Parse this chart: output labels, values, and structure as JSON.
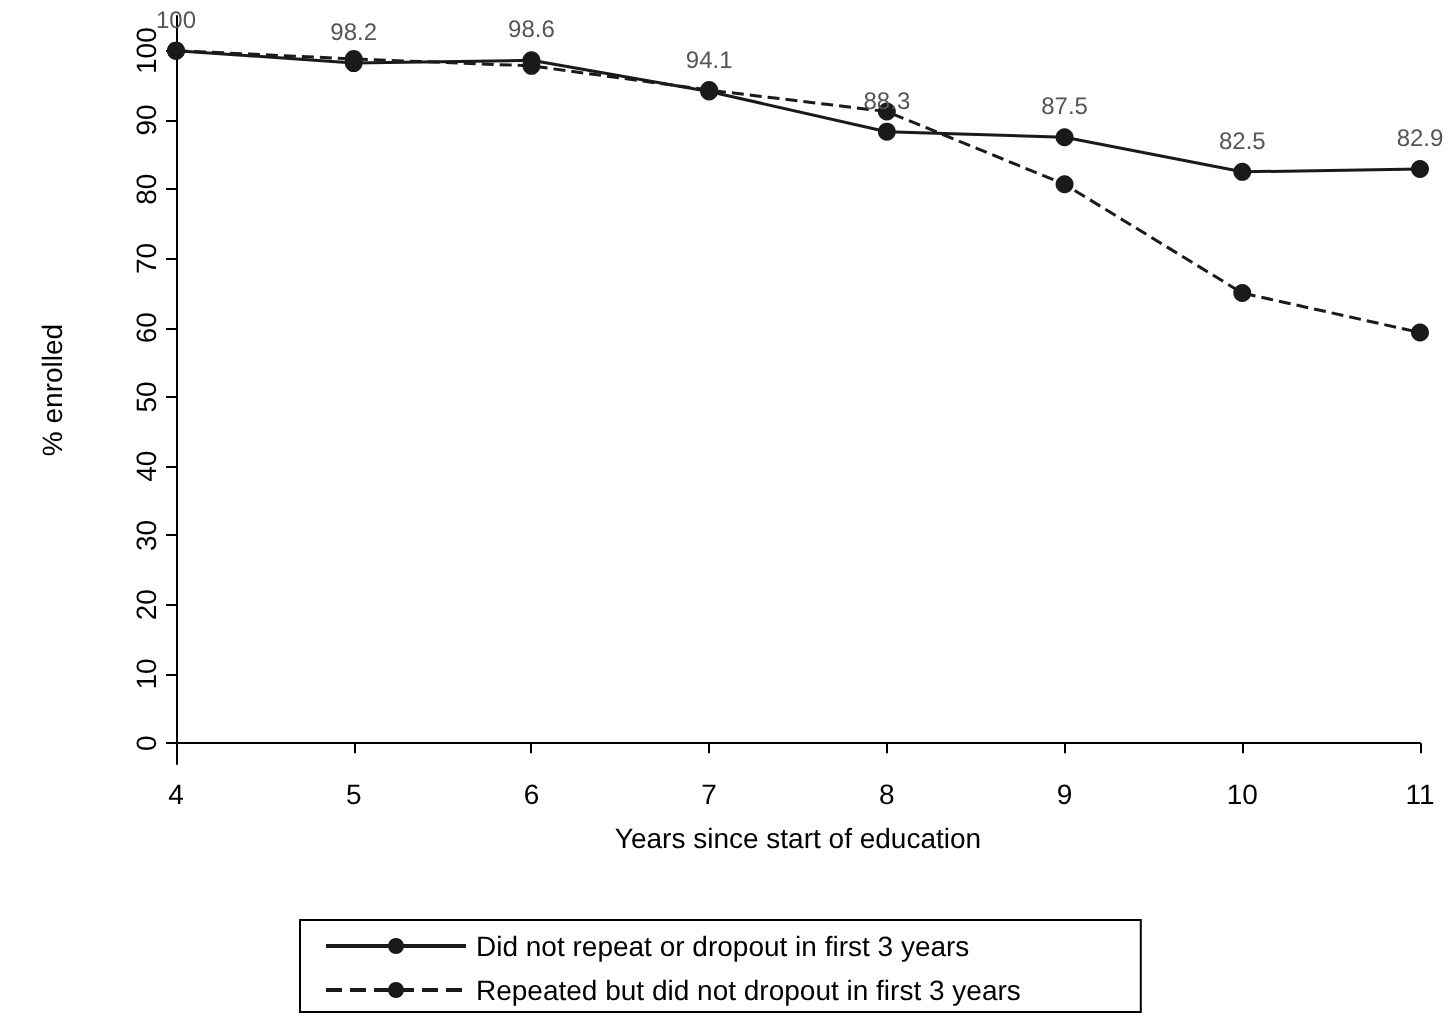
{
  "chart_data": {
    "type": "line",
    "xlabel": "Years since start of education",
    "ylabel": "% enrolled",
    "x": [
      4,
      5,
      6,
      7,
      8,
      9,
      10,
      11
    ],
    "xlim": [
      4,
      11
    ],
    "xticks": [
      4,
      5,
      6,
      7,
      8,
      9,
      10,
      11
    ],
    "ylim": [
      -3,
      105
    ],
    "yticks": [
      0,
      10,
      20,
      30,
      40,
      50,
      60,
      70,
      80,
      90,
      100
    ],
    "grid": false,
    "legend": "bottom",
    "marker": "circle",
    "series": [
      {
        "name": "Did not repeat or dropout in first 3 years",
        "color": "#1a1a1a",
        "line_style": "solid",
        "values": [
          100,
          98.2,
          98.6,
          94.1,
          88.3,
          87.5,
          82.5,
          82.9
        ],
        "value_labels": [
          "100",
          "98.2",
          "98.6",
          "94.1",
          "88.3",
          "87.5",
          "82.5",
          "82.9"
        ]
      },
      {
        "name": "Repeated but did not dropout in first 3 years",
        "color": "#1a1a1a",
        "line_style": "dashed",
        "values": [
          100,
          98.8,
          97.8,
          94.3,
          91.2,
          80.7,
          65,
          59.3
        ]
      }
    ]
  }
}
